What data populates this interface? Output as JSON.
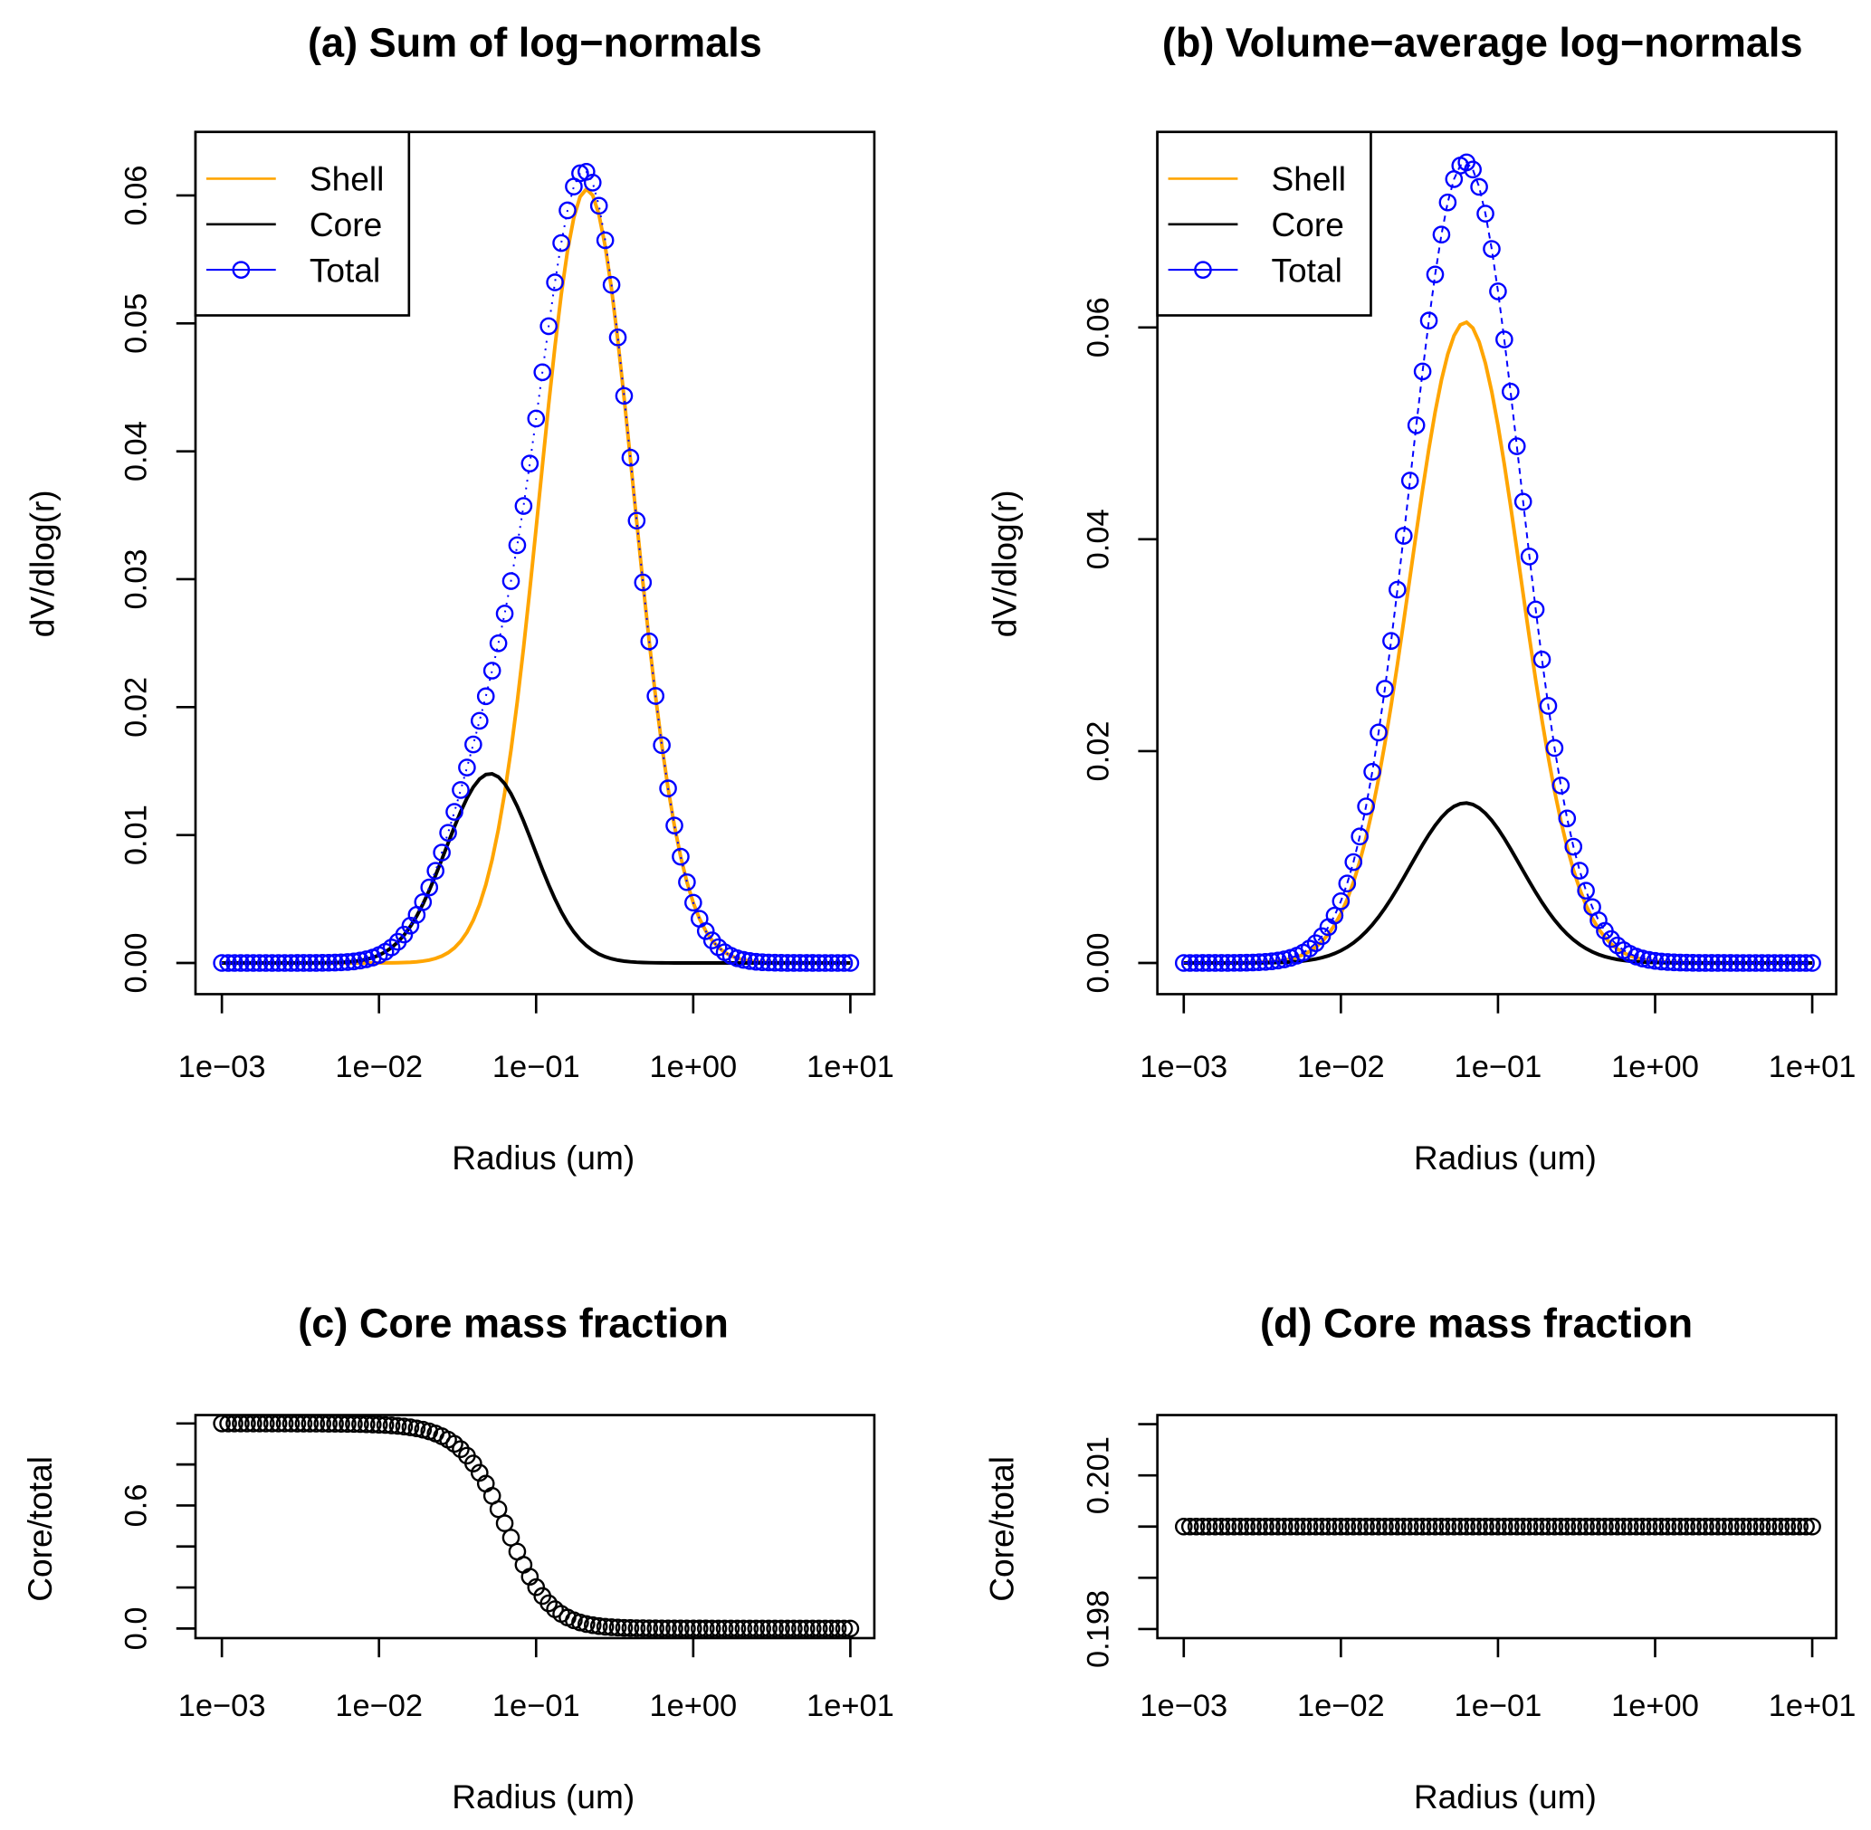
{
  "chart_data": [
    {
      "id": "a",
      "type": "line",
      "title": "(a) Sum of log−normals",
      "xlabel": "Radius (um)",
      "ylabel": "dV/dlog(r)",
      "x_scale": "log10",
      "xlim": [
        0.001,
        10
      ],
      "ylim": [
        0,
        0.0625
      ],
      "x_ticks": [
        {
          "value": 0.001,
          "label": "1e−03"
        },
        {
          "value": 0.01,
          "label": "1e−02"
        },
        {
          "value": 0.1,
          "label": "1e−01"
        },
        {
          "value": 1,
          "label": "1e+00"
        },
        {
          "value": 10,
          "label": "1e+01"
        }
      ],
      "y_ticks": [
        {
          "value": 0,
          "label": "0.00"
        },
        {
          "value": 0.01,
          "label": "0.01"
        },
        {
          "value": 0.02,
          "label": "0.02"
        },
        {
          "value": 0.03,
          "label": "0.03"
        },
        {
          "value": 0.04,
          "label": "0.04"
        },
        {
          "value": 0.05,
          "label": "0.05"
        },
        {
          "value": 0.06,
          "label": "0.06"
        }
      ],
      "n_points": 101,
      "legend": {
        "position": "top-left",
        "entries": [
          "Shell",
          "Core",
          "Total"
        ]
      },
      "series": [
        {
          "name": "Shell",
          "style": "line",
          "color": "#FFA500",
          "shape": "lognormal",
          "peak": 0.0605,
          "mode_radius": 0.21,
          "sigma_log10": 0.3
        },
        {
          "name": "Core",
          "style": "line",
          "color": "#000000",
          "shape": "lognormal",
          "peak": 0.0148,
          "mode_radius": 0.051,
          "sigma_log10": 0.28
        },
        {
          "name": "Total",
          "style": "points+dotted-line",
          "color": "#0000FF",
          "shape": "sum",
          "components": [
            "Shell",
            "Core"
          ],
          "peak": 0.0625
        }
      ]
    },
    {
      "id": "b",
      "type": "line",
      "title": "(b) Volume−average log−normals",
      "xlabel": "Radius (um)",
      "ylabel": "dV/dlog(r)",
      "x_scale": "log10",
      "xlim": [
        0.001,
        10
      ],
      "ylim": [
        0,
        0.0785
      ],
      "x_ticks": [
        {
          "value": 0.001,
          "label": "1e−03"
        },
        {
          "value": 0.01,
          "label": "1e−02"
        },
        {
          "value": 0.1,
          "label": "1e−01"
        },
        {
          "value": 1,
          "label": "1e+00"
        },
        {
          "value": 10,
          "label": "1e+01"
        }
      ],
      "y_ticks": [
        {
          "value": 0,
          "label": "0.00"
        },
        {
          "value": 0.02,
          "label": "0.02"
        },
        {
          "value": 0.04,
          "label": "0.04"
        },
        {
          "value": 0.06,
          "label": "0.06"
        }
      ],
      "n_points": 101,
      "legend": {
        "position": "top-left",
        "entries": [
          "Shell",
          "Core",
          "Total"
        ]
      },
      "series": [
        {
          "name": "Shell",
          "style": "line",
          "color": "#FFA500",
          "shape": "lognormal",
          "peak": 0.0605,
          "mode_radius": 0.062,
          "sigma_log10": 0.35
        },
        {
          "name": "Core",
          "style": "line",
          "color": "#000000",
          "shape": "lognormal",
          "peak": 0.0151,
          "mode_radius": 0.062,
          "sigma_log10": 0.35
        },
        {
          "name": "Total",
          "style": "points+dashed-line",
          "color": "#0000FF",
          "shape": "sum",
          "components": [
            "Shell",
            "Core"
          ],
          "peak": 0.0756
        }
      ]
    },
    {
      "id": "c",
      "type": "scatter",
      "title": "(c) Core mass fraction",
      "xlabel": "Radius (um)",
      "ylabel": "Core/total",
      "x_scale": "log10",
      "xlim": [
        0.001,
        10
      ],
      "ylim": [
        0,
        1
      ],
      "x_ticks": [
        {
          "value": 0.001,
          "label": "1e−03"
        },
        {
          "value": 0.01,
          "label": "1e−02"
        },
        {
          "value": 0.1,
          "label": "1e−01"
        },
        {
          "value": 1,
          "label": "1e+00"
        },
        {
          "value": 10,
          "label": "1e+01"
        }
      ],
      "y_ticks": [
        {
          "value": 0,
          "label": "0.0"
        },
        {
          "value": 0.2,
          "label": ""
        },
        {
          "value": 0.4,
          "label": ""
        },
        {
          "value": 0.6,
          "label": "0.6"
        },
        {
          "value": 0.8,
          "label": ""
        },
        {
          "value": 1.0,
          "label": ""
        }
      ],
      "n_points": 101,
      "series": [
        {
          "name": "Core/total",
          "style": "points",
          "color": "#000000",
          "shape": "ratio",
          "source_chart": "a",
          "numerator": "Core",
          "denominator": "Total"
        }
      ]
    },
    {
      "id": "d",
      "type": "scatter",
      "title": "(d) Core mass fraction",
      "xlabel": "Radius (um)",
      "ylabel": "Core/total",
      "x_scale": "log10",
      "xlim": [
        0.001,
        10
      ],
      "ylim": [
        0.198,
        0.202
      ],
      "x_ticks": [
        {
          "value": 0.001,
          "label": "1e−03"
        },
        {
          "value": 0.01,
          "label": "1e−02"
        },
        {
          "value": 0.1,
          "label": "1e−01"
        },
        {
          "value": 1,
          "label": "1e+00"
        },
        {
          "value": 10,
          "label": "1e+01"
        }
      ],
      "y_ticks": [
        {
          "value": 0.198,
          "label": "0.198"
        },
        {
          "value": 0.199,
          "label": ""
        },
        {
          "value": 0.2,
          "label": ""
        },
        {
          "value": 0.201,
          "label": "0.201"
        },
        {
          "value": 0.202,
          "label": ""
        }
      ],
      "n_points": 101,
      "series": [
        {
          "name": "Core/total",
          "style": "points",
          "color": "#000000",
          "shape": "constant",
          "value": 0.2
        }
      ]
    }
  ]
}
